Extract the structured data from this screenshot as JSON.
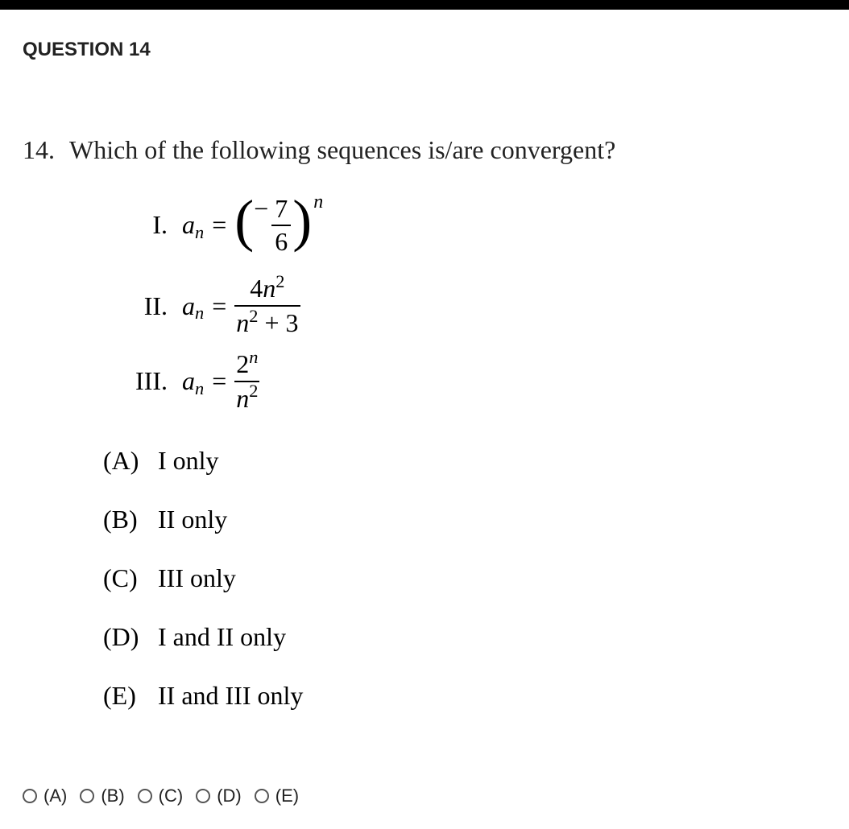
{
  "header": "QUESTION 14",
  "question": {
    "number": "14.",
    "prompt": "Which of the following sequences is/are convergent?"
  },
  "sequences": {
    "s1": {
      "roman": "I.",
      "lhs_var": "a",
      "lhs_sub": "n",
      "equals": "=",
      "neg": "−",
      "frac_top": "7",
      "frac_bot": "6",
      "outer_exp": "n"
    },
    "s2": {
      "roman": "II.",
      "lhs_var": "a",
      "lhs_sub": "n",
      "equals": "=",
      "top_coef": "4",
      "top_var": "n",
      "top_exp": "2",
      "bot_var": "n",
      "bot_exp": "2",
      "bot_plus": " + 3"
    },
    "s3": {
      "roman": "III.",
      "lhs_var": "a",
      "lhs_sub": "n",
      "equals": "=",
      "top_base": "2",
      "top_exp": "n",
      "bot_var": "n",
      "bot_exp": "2"
    }
  },
  "choices": {
    "a": {
      "letter": "(A)",
      "text": "I only"
    },
    "b": {
      "letter": "(B)",
      "text": "II only"
    },
    "c": {
      "letter": "(C)",
      "text": "III only"
    },
    "d": {
      "letter": "(D)",
      "text": "I and II only"
    },
    "e": {
      "letter": "(E)",
      "text": "II and III only"
    }
  },
  "answers": {
    "a": "(A)",
    "b": "(B)",
    "c": "(C)",
    "d": "(D)",
    "e": "(E)"
  },
  "colors": {
    "page_bg": "#ffffff",
    "text": "#000000",
    "header_bar": "#000000",
    "radio_border": "#555555"
  }
}
